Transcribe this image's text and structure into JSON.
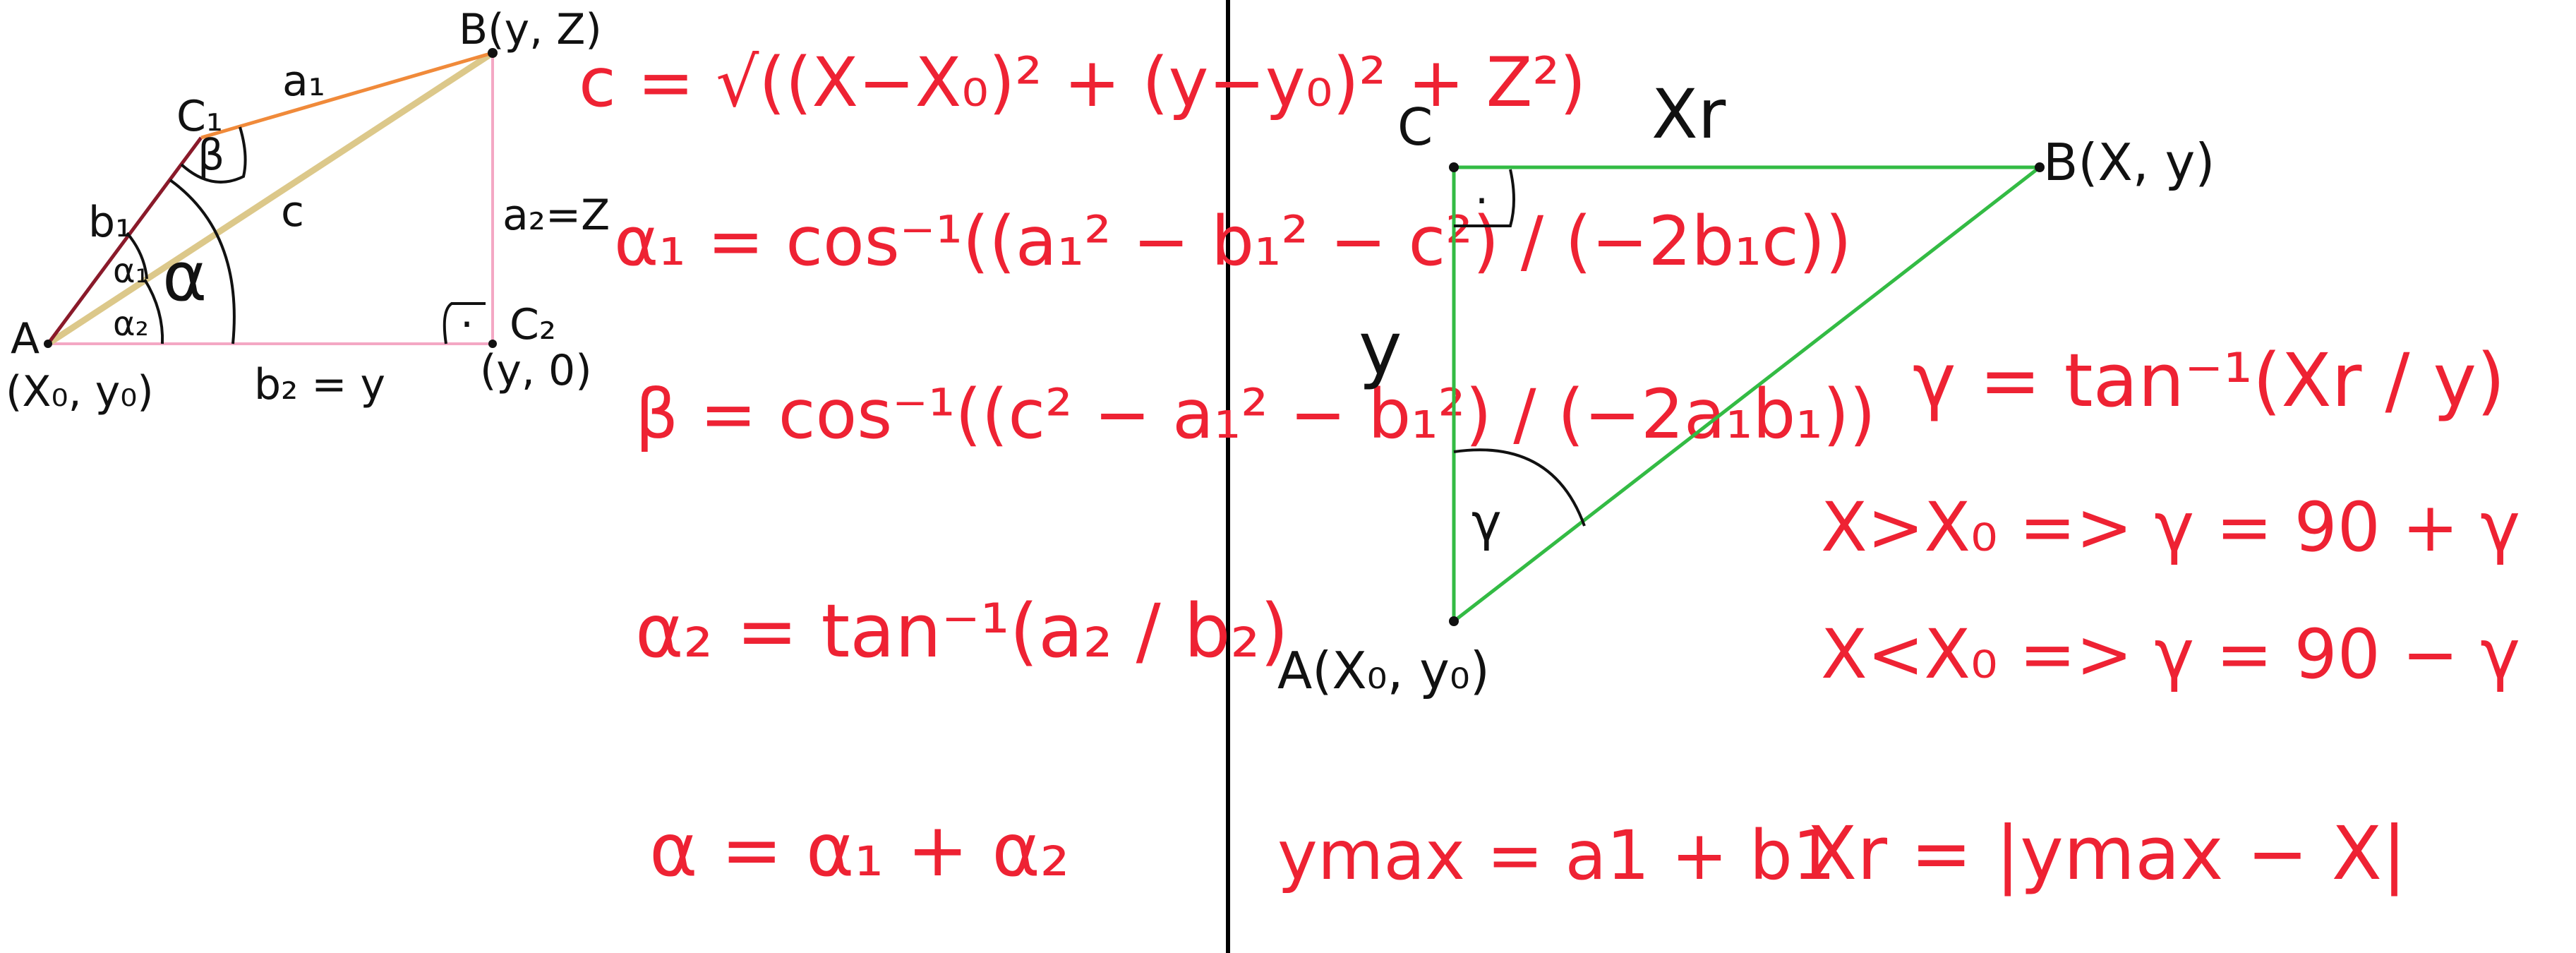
{
  "colors": {
    "ink": "#111111",
    "formula": "#ee2233",
    "segment_a1": "#f08a3a",
    "segment_b1": "#8a1a2a",
    "segment_c": "#dcc88a",
    "helper_lines": "#f4a8c4",
    "triangle": "#33bb44",
    "divider": "#000000"
  },
  "left_diagram": {
    "points": {
      "A": "A",
      "A_coords": "(X₀, y₀)",
      "B": "B(y, Z)",
      "C1": "C₁",
      "C2": "C₂",
      "C2_coords": "(y, 0)"
    },
    "segments": {
      "a1": "a₁",
      "b1": "b₁",
      "c": "c",
      "a2": "a₂=Z",
      "b2": "b₂ = y"
    },
    "angles": {
      "alpha": "α",
      "alpha1": "α₁",
      "alpha2": "α₂",
      "beta": "β"
    },
    "right_angle_mark": "·"
  },
  "left_formulas": {
    "c": "c = √((X−X₀)² + (y−y₀)² + Z²)",
    "alpha1": "α₁ = cos⁻¹((a₁² − b₁² − c²) / (−2b₁c))",
    "beta": "β = cos⁻¹((c² − a₁² − b₁²) / (−2a₁b₁))",
    "alpha2": "α₂ = tan⁻¹(a₂ / b₂)",
    "alpha": "α = α₁ + α₂"
  },
  "right_diagram": {
    "points": {
      "A": "A(X₀, y₀)",
      "B": "B(X, y)",
      "C": "C"
    },
    "sides": {
      "top": "Xr",
      "left": "y"
    },
    "angle": "γ",
    "right_angle_mark": "·"
  },
  "right_formulas": {
    "gamma": "γ = tan⁻¹(Xr / y)",
    "cond_gt": "X>X₀ => γ = 90 + γ",
    "cond_lt": "X<X₀ => γ = 90 − γ",
    "ymax": "ymax = a1 + b1",
    "xr": "Xr = |ymax − X|"
  }
}
